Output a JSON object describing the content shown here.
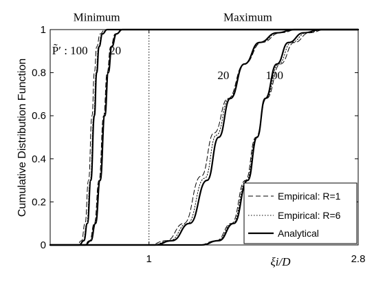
{
  "chart_data": {
    "type": "line",
    "title": "",
    "xlabel": "ξi/D",
    "ylabel": "Cumulative Distribution Function",
    "xlim": [
      0.15,
      2.8
    ],
    "ylim": [
      0,
      1
    ],
    "x_ticks": [
      {
        "value": 1,
        "label": "1"
      },
      {
        "value": 2.8,
        "label": "2.8"
      }
    ],
    "y_ticks": [
      {
        "value": 0,
        "label": "0"
      },
      {
        "value": 0.2,
        "label": "0.2"
      },
      {
        "value": 0.4,
        "label": "0.4"
      },
      {
        "value": 0.6,
        "label": "0.6"
      },
      {
        "value": 0.8,
        "label": "0.8"
      },
      {
        "value": 1,
        "label": "1"
      }
    ],
    "grid": false,
    "reference_line": {
      "x": 1,
      "style": "dotted"
    },
    "region_labels": [
      {
        "text": "Minimum",
        "x": 0.55,
        "y": 1.04
      },
      {
        "text": "Maximum",
        "x": 1.85,
        "y": 1.04
      }
    ],
    "curve_labels": [
      {
        "text": "P̃′ : 100",
        "x": 0.32,
        "y": 0.885
      },
      {
        "text": "20",
        "x": 0.71,
        "y": 0.885
      },
      {
        "text": "20",
        "x": 1.64,
        "y": 0.77
      },
      {
        "text": "100",
        "x": 2.08,
        "y": 0.77
      }
    ],
    "legend": {
      "placement": "bottom-right",
      "entries": [
        {
          "label": "Empirical: R=1",
          "style": "dashed"
        },
        {
          "label": "Empirical: R=6",
          "style": "dotted"
        },
        {
          "label": "Analytical",
          "style": "solid"
        }
      ]
    },
    "series": [
      {
        "group": "Minimum, P̃′=100",
        "style": "solid",
        "x": [
          0.15,
          0.4,
          0.44,
          0.47,
          0.5,
          0.53,
          0.55,
          0.57,
          0.6,
          0.64,
          2.8
        ],
        "y": [
          0,
          0,
          0.02,
          0.1,
          0.3,
          0.6,
          0.8,
          0.92,
          0.98,
          1,
          1
        ]
      },
      {
        "group": "Minimum, P̃′=100",
        "style": "dashed",
        "x": [
          0.15,
          0.38,
          0.42,
          0.45,
          0.48,
          0.51,
          0.53,
          0.55,
          0.58,
          0.62,
          2.8
        ],
        "y": [
          0,
          0,
          0.02,
          0.1,
          0.3,
          0.6,
          0.8,
          0.92,
          0.98,
          1,
          1
        ]
      },
      {
        "group": "Minimum, P̃′=100",
        "style": "dotted",
        "x": [
          0.15,
          0.395,
          0.435,
          0.465,
          0.495,
          0.525,
          0.545,
          0.565,
          0.595,
          0.635,
          2.8
        ],
        "y": [
          0,
          0,
          0.02,
          0.1,
          0.3,
          0.6,
          0.8,
          0.92,
          0.98,
          1,
          1
        ]
      },
      {
        "group": "Minimum, P̃′=20",
        "style": "solid",
        "x": [
          0.15,
          0.45,
          0.5,
          0.54,
          0.58,
          0.62,
          0.65,
          0.68,
          0.72,
          0.77,
          2.8
        ],
        "y": [
          0,
          0,
          0.02,
          0.1,
          0.3,
          0.6,
          0.8,
          0.92,
          0.98,
          1,
          1
        ]
      },
      {
        "group": "Minimum, P̃′=20",
        "style": "dashed",
        "x": [
          0.15,
          0.44,
          0.49,
          0.53,
          0.57,
          0.61,
          0.64,
          0.67,
          0.71,
          0.77,
          2.8
        ],
        "y": [
          0,
          0,
          0.02,
          0.1,
          0.3,
          0.6,
          0.8,
          0.92,
          0.98,
          1,
          1
        ]
      },
      {
        "group": "Minimum, P̃′=20",
        "style": "dotted",
        "x": [
          0.15,
          0.445,
          0.495,
          0.535,
          0.575,
          0.615,
          0.645,
          0.675,
          0.715,
          0.77,
          2.8
        ],
        "y": [
          0,
          0,
          0.02,
          0.1,
          0.3,
          0.6,
          0.8,
          0.92,
          0.98,
          1,
          1
        ]
      },
      {
        "group": "Maximum, P̃′=20",
        "style": "solid",
        "x": [
          0.15,
          1.05,
          1.2,
          1.35,
          1.5,
          1.6,
          1.7,
          1.82,
          1.95,
          2.1,
          2.25,
          2.8
        ],
        "y": [
          0,
          0,
          0.02,
          0.1,
          0.3,
          0.5,
          0.68,
          0.84,
          0.94,
          0.985,
          1,
          1
        ]
      },
      {
        "group": "Maximum, P̃′=20",
        "style": "dashed",
        "x": [
          0.15,
          1.0,
          1.15,
          1.3,
          1.45,
          1.56,
          1.68,
          1.82,
          1.97,
          2.13,
          2.28,
          2.8
        ],
        "y": [
          0,
          0,
          0.02,
          0.1,
          0.32,
          0.52,
          0.68,
          0.84,
          0.94,
          0.985,
          1,
          1
        ]
      },
      {
        "group": "Maximum, P̃′=20",
        "style": "dotted",
        "x": [
          0.15,
          1.03,
          1.18,
          1.33,
          1.48,
          1.58,
          1.69,
          1.82,
          1.96,
          2.11,
          2.26,
          2.8
        ],
        "y": [
          0,
          0,
          0.02,
          0.1,
          0.31,
          0.51,
          0.68,
          0.84,
          0.94,
          0.985,
          1,
          1
        ]
      },
      {
        "group": "Maximum, P̃′=100",
        "style": "solid",
        "x": [
          0.15,
          1.45,
          1.6,
          1.73,
          1.85,
          1.93,
          2.0,
          2.1,
          2.2,
          2.33,
          2.48,
          2.8
        ],
        "y": [
          0,
          0,
          0.02,
          0.1,
          0.3,
          0.5,
          0.68,
          0.84,
          0.94,
          0.985,
          1,
          1
        ]
      },
      {
        "group": "Maximum, P̃′=100",
        "style": "dashed",
        "x": [
          0.15,
          1.43,
          1.58,
          1.71,
          1.83,
          1.92,
          2.01,
          2.13,
          2.25,
          2.38,
          2.52,
          2.8
        ],
        "y": [
          0,
          0,
          0.02,
          0.1,
          0.3,
          0.5,
          0.68,
          0.84,
          0.94,
          0.985,
          1,
          1
        ]
      },
      {
        "group": "Maximum, P̃′=100",
        "style": "dotted",
        "x": [
          0.15,
          1.44,
          1.59,
          1.72,
          1.84,
          1.925,
          2.005,
          2.115,
          2.225,
          2.355,
          2.5,
          2.8
        ],
        "y": [
          0,
          0,
          0.02,
          0.1,
          0.3,
          0.5,
          0.68,
          0.84,
          0.94,
          0.985,
          1,
          1
        ]
      }
    ]
  }
}
